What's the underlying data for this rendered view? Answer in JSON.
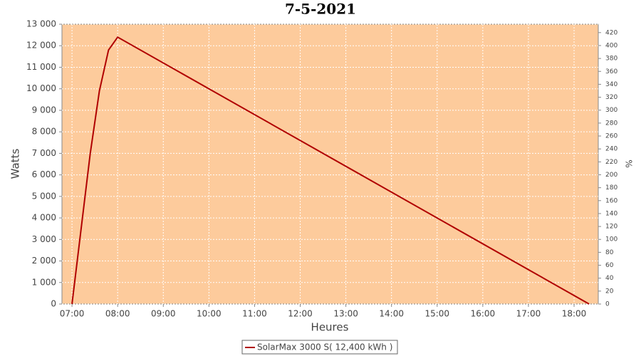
{
  "chart_data": {
    "type": "line",
    "title": "7-5-2021",
    "x_label": "Heures",
    "y_label": "Watts",
    "y2_label": "%",
    "x": [
      7.0,
      7.4,
      7.6,
      7.8,
      8.0,
      18.33
    ],
    "series": [
      {
        "name": "SolarMax 3000 S( 12,400 kWh )",
        "color": "#b00000",
        "values": [
          0,
          7000,
          9900,
          11800,
          12400,
          0
        ]
      }
    ],
    "xlim": [
      6.78,
      18.53
    ],
    "xticks": [
      {
        "value": 7,
        "label": "07:00"
      },
      {
        "value": 8,
        "label": "08:00"
      },
      {
        "value": 9,
        "label": "09:00"
      },
      {
        "value": 10,
        "label": "10:00"
      },
      {
        "value": 11,
        "label": "11:00"
      },
      {
        "value": 12,
        "label": "12:00"
      },
      {
        "value": 13,
        "label": "13:00"
      },
      {
        "value": 14,
        "label": "14:00"
      },
      {
        "value": 15,
        "label": "15:00"
      },
      {
        "value": 16,
        "label": "16:00"
      },
      {
        "value": 17,
        "label": "17:00"
      },
      {
        "value": 18,
        "label": "18:00"
      }
    ],
    "ylim": [
      0,
      13000
    ],
    "yticks": [
      0,
      {
        "value": 1000,
        "label": "1 000"
      },
      {
        "value": 2000,
        "label": "2 000"
      },
      {
        "value": 3000,
        "label": "3 000"
      },
      {
        "value": 4000,
        "label": "4 000"
      },
      {
        "value": 5000,
        "label": "5 000"
      },
      {
        "value": 6000,
        "label": "6 000"
      },
      {
        "value": 7000,
        "label": "7 000"
      },
      {
        "value": 8000,
        "label": "8 000"
      },
      {
        "value": 9000,
        "label": "9 000"
      },
      {
        "value": 10000,
        "label": "10 000"
      },
      {
        "value": 11000,
        "label": "11 000"
      },
      {
        "value": 12000,
        "label": "12 000"
      },
      {
        "value": 13000,
        "label": "13 000"
      }
    ],
    "y2lim": [
      0,
      433
    ],
    "y2ticks": [
      0,
      20,
      40,
      60,
      80,
      100,
      120,
      140,
      160,
      180,
      200,
      220,
      240,
      260,
      280,
      300,
      320,
      340,
      360,
      380,
      400,
      420
    ],
    "grid": true,
    "background": "#fdcb9c",
    "legend_position": "bottom"
  }
}
